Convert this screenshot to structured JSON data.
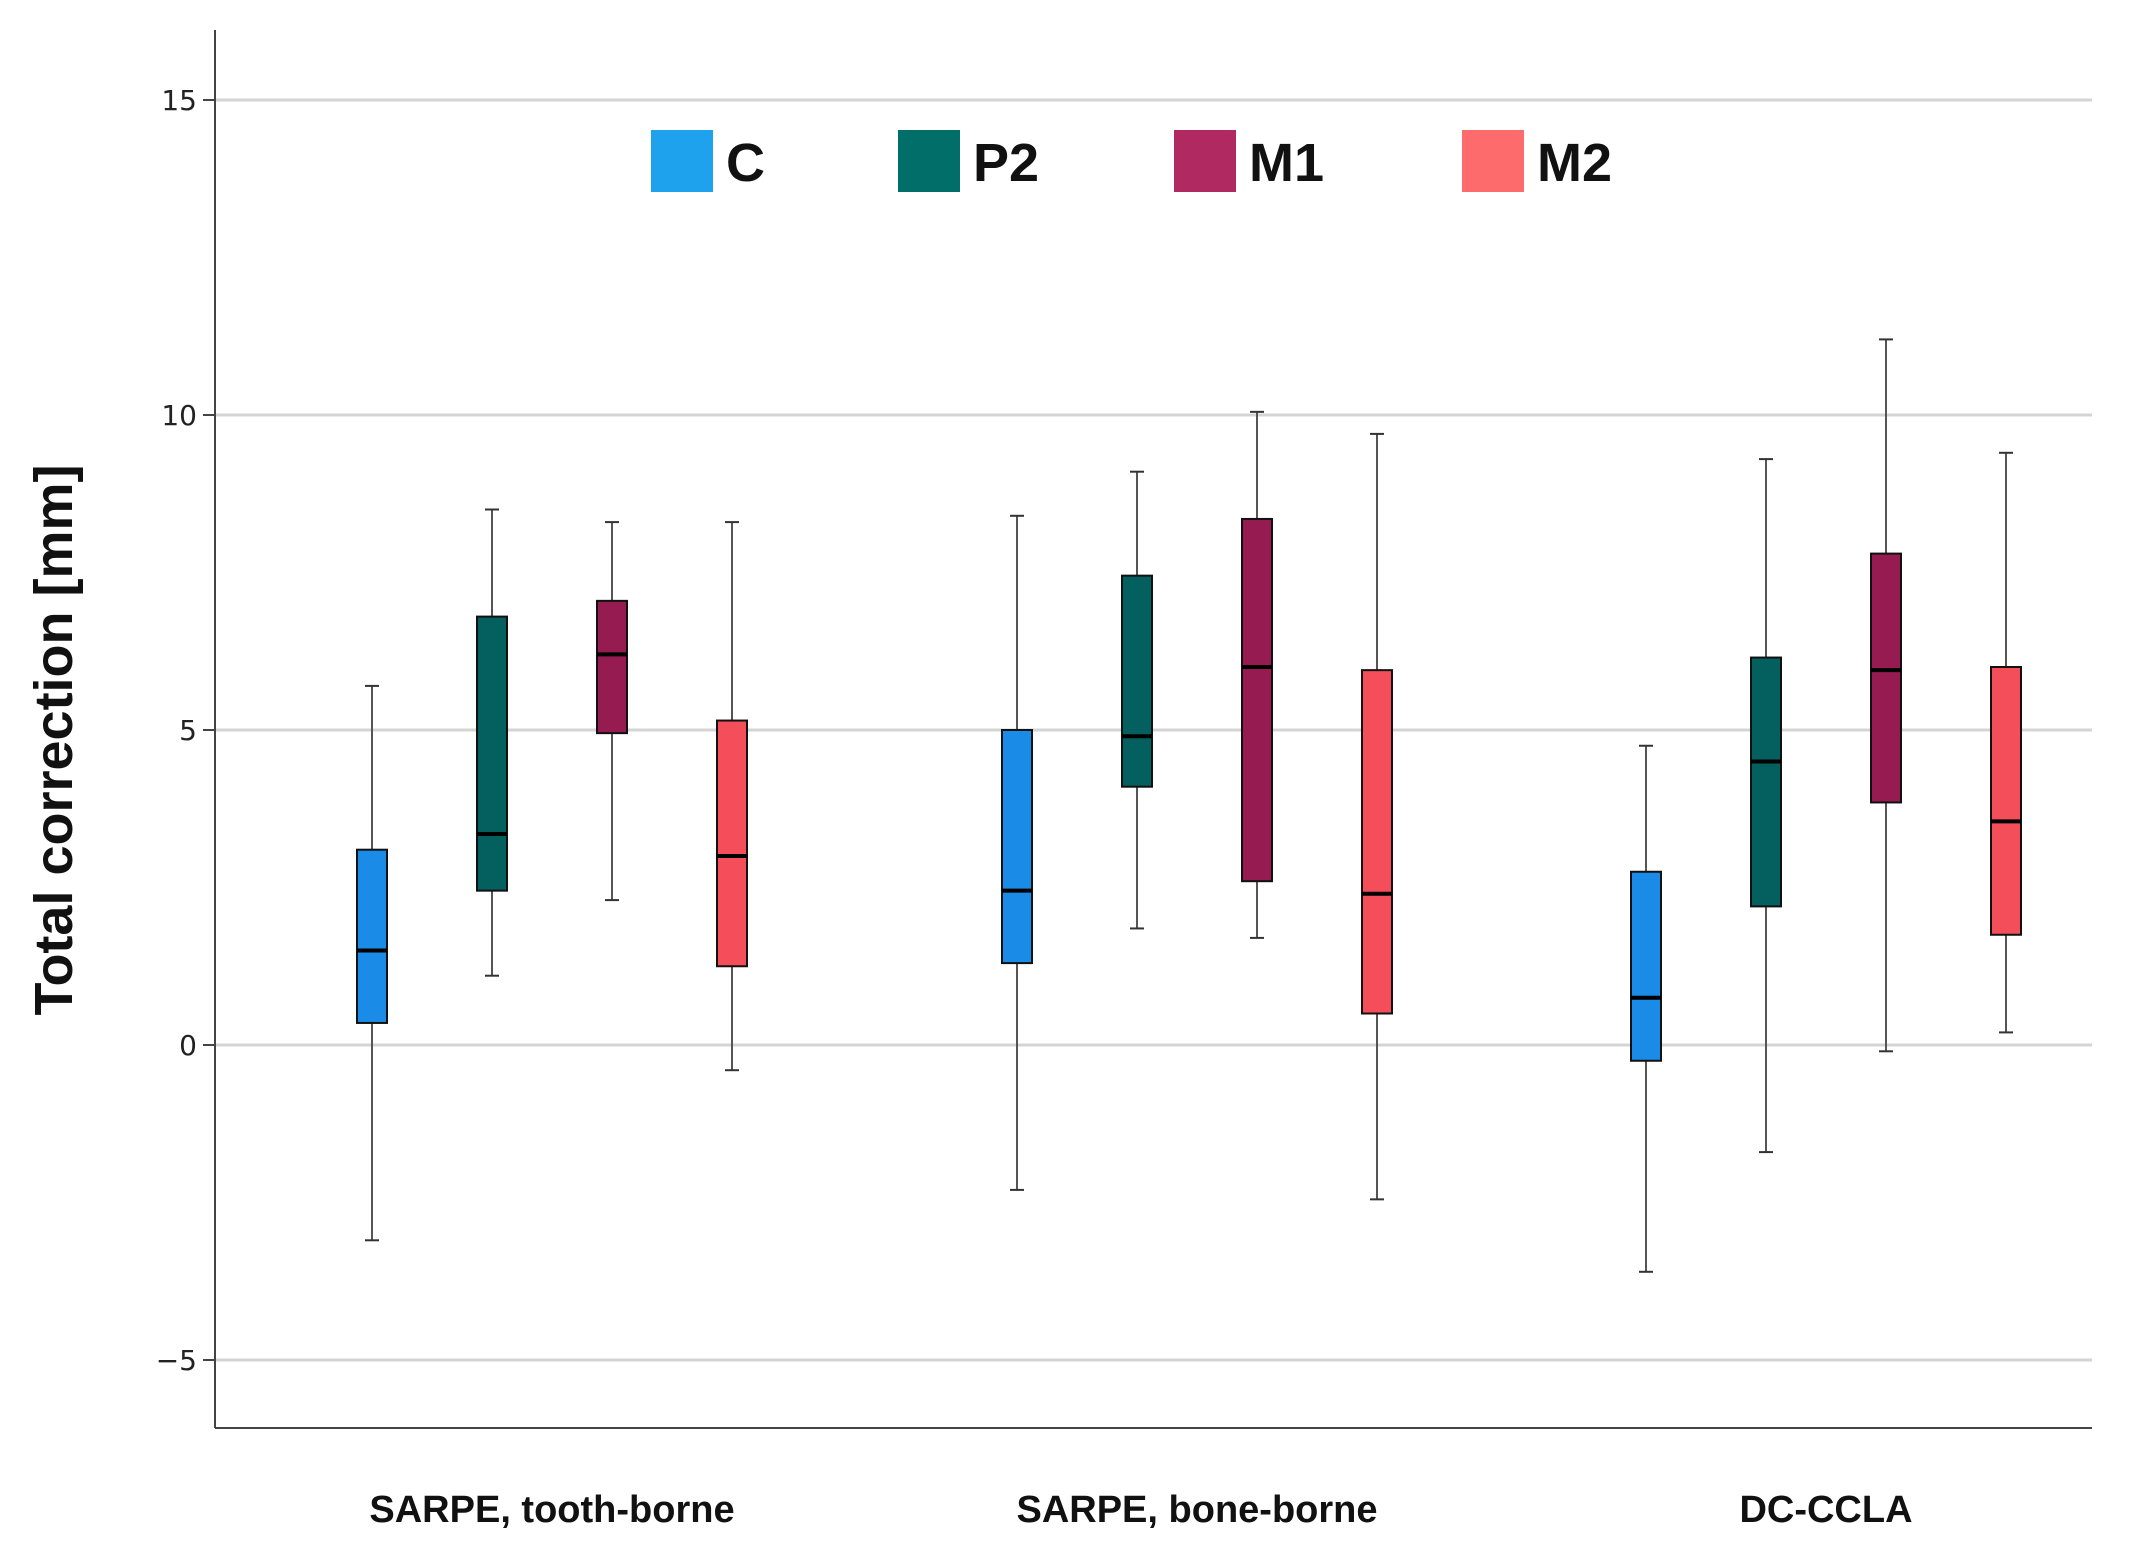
{
  "chart_data": {
    "type": "boxplot",
    "title": "",
    "xlabel": "",
    "ylabel": "Total correction [mm]",
    "ylim": [
      -6.1,
      16.1
    ],
    "yticks": [
      15,
      10,
      5,
      0,
      -5
    ],
    "ytick_labels": [
      "15",
      "10",
      "5",
      "0",
      "−5"
    ],
    "grid": true,
    "legend_position": "top",
    "categories": [
      "SARPE, tooth-borne",
      "SARPE, bone-borne",
      "DC-CCLA"
    ],
    "series": [
      {
        "name": "C",
        "color": "#1A8BE6",
        "legend_color": "#1EA2EE",
        "boxes": [
          {
            "min": -3.1,
            "q1": 0.35,
            "median": 1.5,
            "q3": 3.1,
            "max": 5.7
          },
          {
            "min": -2.3,
            "q1": 1.3,
            "median": 2.45,
            "q3": 5.0,
            "max": 8.4
          },
          {
            "min": -3.6,
            "q1": -0.25,
            "median": 0.75,
            "q3": 2.75,
            "max": 4.75
          }
        ]
      },
      {
        "name": "P2",
        "color": "#03605E",
        "legend_color": "#016E6A",
        "boxes": [
          {
            "min": 1.1,
            "q1": 2.45,
            "median": 3.35,
            "q3": 6.8,
            "max": 8.5
          },
          {
            "min": 1.85,
            "q1": 4.1,
            "median": 4.9,
            "q3": 7.45,
            "max": 9.1
          },
          {
            "min": -1.7,
            "q1": 2.2,
            "median": 4.5,
            "q3": 6.15,
            "max": 9.3
          }
        ]
      },
      {
        "name": "M1",
        "color": "#961B50",
        "legend_color": "#B12961",
        "boxes": [
          {
            "min": 2.3,
            "q1": 4.95,
            "median": 6.2,
            "q3": 7.05,
            "max": 8.3
          },
          {
            "min": 1.7,
            "q1": 2.6,
            "median": 6.0,
            "q3": 8.35,
            "max": 10.05
          },
          {
            "min": -0.1,
            "q1": 3.85,
            "median": 5.95,
            "q3": 7.8,
            "max": 11.2
          }
        ]
      },
      {
        "name": "M2",
        "color": "#F54E5B",
        "legend_color": "#FE6B6C",
        "boxes": [
          {
            "min": -0.4,
            "q1": 1.25,
            "median": 3.0,
            "q3": 5.15,
            "max": 8.3
          },
          {
            "min": -2.45,
            "q1": 0.5,
            "median": 2.4,
            "q3": 5.95,
            "max": 9.7
          },
          {
            "min": 0.2,
            "q1": 1.75,
            "median": 3.55,
            "q3": 6.0,
            "max": 9.4
          }
        ]
      }
    ]
  }
}
